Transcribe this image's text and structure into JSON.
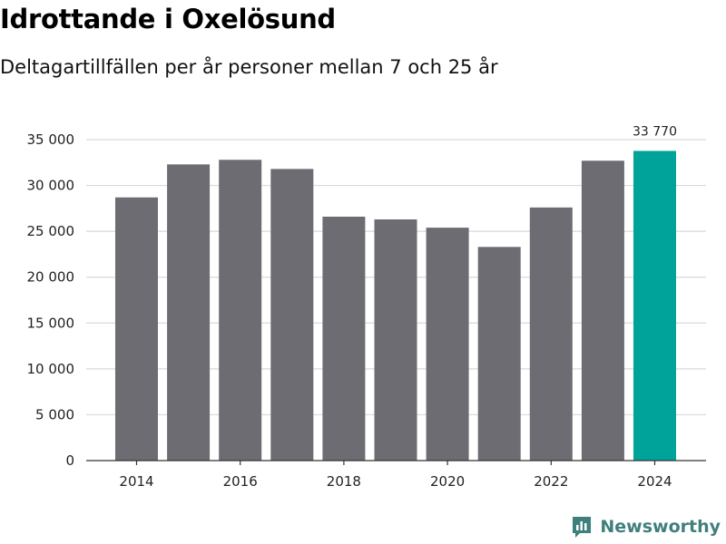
{
  "header": {
    "title": "Idrottande i Oxelösund",
    "subtitle": "Deltagartillfällen per år personer mellan 7 och 25 år"
  },
  "brand": {
    "name": "Newsworthy",
    "logo_icon": "newsworthy-chart-logo-icon"
  },
  "colors": {
    "bar": "#6d6c72",
    "highlight": "#00a39a",
    "grid": "#d9d9d9",
    "axis": "#333333",
    "brand": "#3f7f7c"
  },
  "chart_data": {
    "type": "bar",
    "title": "Idrottande i Oxelösund",
    "subtitle": "Deltagartillfällen per år personer mellan 7 och 25 år",
    "xlabel": "",
    "ylabel": "",
    "categories": [
      "2014",
      "2015",
      "2016",
      "2017",
      "2018",
      "2019",
      "2020",
      "2021",
      "2022",
      "2023",
      "2024"
    ],
    "values": [
      28700,
      32300,
      32800,
      31800,
      26600,
      26300,
      25400,
      23300,
      27600,
      32700,
      33770
    ],
    "highlight_index": 10,
    "data_labels": [
      {
        "index": 10,
        "text": "33 770"
      }
    ],
    "x_tick_labels": [
      "2014",
      "2016",
      "2018",
      "2020",
      "2022",
      "2024"
    ],
    "y_ticks": [
      0,
      5000,
      10000,
      15000,
      20000,
      25000,
      30000,
      35000
    ],
    "y_tick_labels": [
      "0",
      "5 000",
      "10 000",
      "15 000",
      "20 000",
      "25 000",
      "30 000",
      "35 000"
    ],
    "ylim": [
      0,
      35000
    ],
    "grid": true,
    "legend": "none"
  }
}
